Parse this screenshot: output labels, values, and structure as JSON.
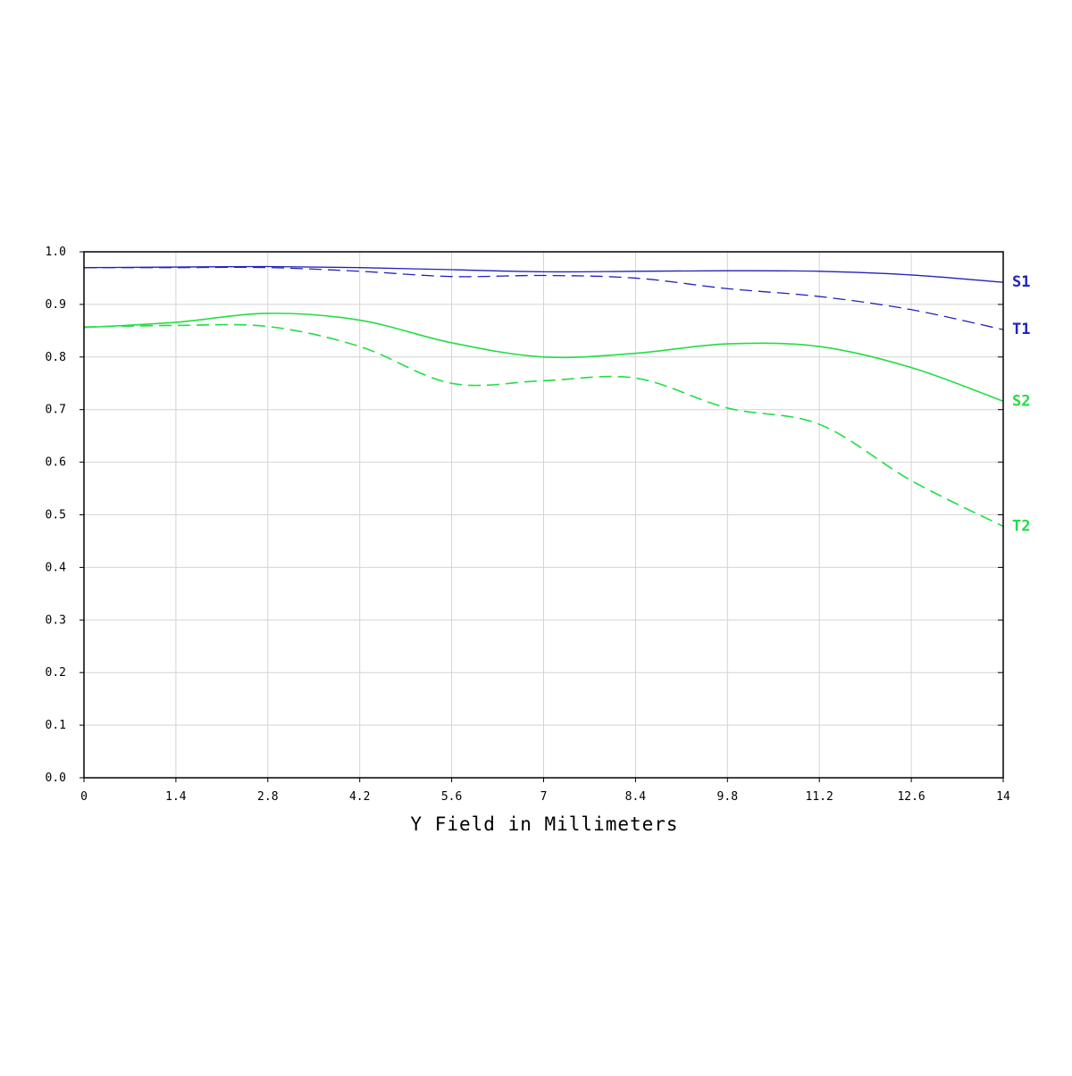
{
  "chart_data": {
    "type": "line",
    "title": "",
    "xlabel": "Y Field in Millimeters",
    "ylabel": "",
    "xlim": [
      0,
      14
    ],
    "ylim": [
      0,
      1
    ],
    "grid": true,
    "x_ticks": [
      "0",
      "1.4",
      "2.8",
      "4.2",
      "5.6",
      "7",
      "8.4",
      "9.8",
      "11.2",
      "12.6",
      "14"
    ],
    "y_ticks": [
      "0.0",
      "0.1",
      "0.2",
      "0.3",
      "0.4",
      "0.5",
      "0.6",
      "0.7",
      "0.8",
      "0.9",
      "1.0"
    ],
    "series": [
      {
        "name": "S1",
        "color": "#2222bb",
        "style": "solid",
        "x": [
          0,
          1.4,
          2.8,
          4.2,
          5.6,
          7,
          8.4,
          9.8,
          11.2,
          12.6,
          14
        ],
        "y": [
          0.97,
          0.971,
          0.972,
          0.97,
          0.966,
          0.962,
          0.963,
          0.964,
          0.963,
          0.956,
          0.942
        ]
      },
      {
        "name": "T1",
        "color": "#2222bb",
        "style": "dashed",
        "x": [
          0,
          1.4,
          2.8,
          4.2,
          5.6,
          7,
          8.4,
          9.8,
          11.2,
          12.6,
          14
        ],
        "y": [
          0.97,
          0.97,
          0.97,
          0.963,
          0.953,
          0.955,
          0.95,
          0.93,
          0.915,
          0.89,
          0.852
        ]
      },
      {
        "name": "S2",
        "color": "#22dd44",
        "style": "solid",
        "x": [
          0,
          1.4,
          2.8,
          4.2,
          5.6,
          7,
          8.4,
          9.8,
          11.2,
          12.6,
          14
        ],
        "y": [
          0.856,
          0.866,
          0.883,
          0.87,
          0.827,
          0.8,
          0.807,
          0.825,
          0.82,
          0.78,
          0.716
        ]
      },
      {
        "name": "T2",
        "color": "#22dd44",
        "style": "dashed",
        "x": [
          0,
          1.4,
          2.8,
          4.2,
          5.6,
          7,
          8.4,
          9.8,
          11.2,
          12.6,
          14
        ],
        "y": [
          0.857,
          0.86,
          0.858,
          0.82,
          0.75,
          0.755,
          0.76,
          0.703,
          0.672,
          0.565,
          0.478
        ]
      }
    ]
  }
}
